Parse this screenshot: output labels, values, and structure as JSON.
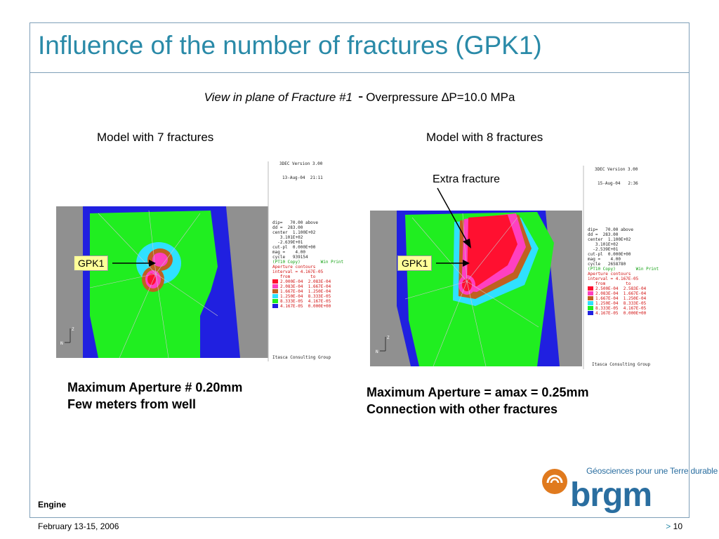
{
  "slide": {
    "title": "Influence of the number of fractures (GPK1)",
    "subtitle_italic": "View in plane of Fracture #1",
    "subtitle_dash": "-",
    "subtitle_rest": "Overpressure ∆P=10.0 MPa"
  },
  "left_model": {
    "label": "Model with 7 fractures",
    "well_label": "GPK1",
    "caption_line1": "Maximum Aperture # 0.20mm",
    "caption_line2": "Few meters from well",
    "sim": {
      "version": "3DEC Version 3.00",
      "date": "13-Aug-04  21:11",
      "params": "dip=   70.00 above\ndd =  283.00\ncenter  1.100E+02\n   3.101E+02\n  -2.639E+01\ncut-pl  0.000E+00\nmag =    4.00\ncycle   939154",
      "view_line": "(PT10 Copy)        Win Print",
      "contour_title": "Aperture contours",
      "interval": "interval = 4.167E-05",
      "from_to": "   from        to",
      "legend_rows": [
        "2.000E-04  2.083E-04",
        "2.083E-04  1.667E-04",
        "1.667E-04  1.250E-04",
        "1.250E-04  8.333E-05",
        "8.333E-05  4.167E-05",
        "4.167E-05  0.000E+00"
      ],
      "credit": "Itasca Consulting Group",
      "axis_labels": [
        "Z",
        "N"
      ]
    }
  },
  "right_model": {
    "label": "Model with 8 fractures",
    "callout": "Extra fracture",
    "well_label": "GPK1",
    "caption_line1": "Maximum Aperture = amax = 0.25mm",
    "caption_line2": "Connection with other fractures",
    "sim": {
      "version": "3DEC Version 3.00",
      "date": "15-Aug-04   2:36",
      "params": "dip=   70.00 above\ndd =  283.00\ncenter  1.100E+02\n   3.101E+02\n  -2.539E+01\ncut-pl  0.000E+00\nmag =    4.00\ncycle   2658780",
      "view_line": "(PT10 Copy)        Win Print",
      "contour_title": "Aperture contours",
      "interval": "interval = 4.167E-05",
      "from_to": "   from        to",
      "legend_rows": [
        "2.500E-04  2.583E-04",
        "2.083E-04  1.667E-04",
        "1.667E-04  1.250E-04",
        "1.250E-04  8.333E-05",
        "8.333E-05  4.167E-05",
        "4.167E-05  0.000E+00"
      ],
      "credit": "Itasca Consulting Group",
      "axis_labels": [
        "Z",
        "N"
      ]
    }
  },
  "legend_colors": [
    "#ff1030",
    "#ff40c0",
    "#c06020",
    "#30e0ff",
    "#20ee20",
    "#2020e0"
  ],
  "footer": {
    "engine": "Engine",
    "date": "February 13-15, 2006",
    "page_marker": ">",
    "page_number": "10"
  },
  "logo": {
    "tagline": "Géosciences pour une Terre durable",
    "wordmark": "brgm",
    "colors": {
      "orange": "#e07a1e",
      "blue": "#2a6ea0"
    }
  }
}
